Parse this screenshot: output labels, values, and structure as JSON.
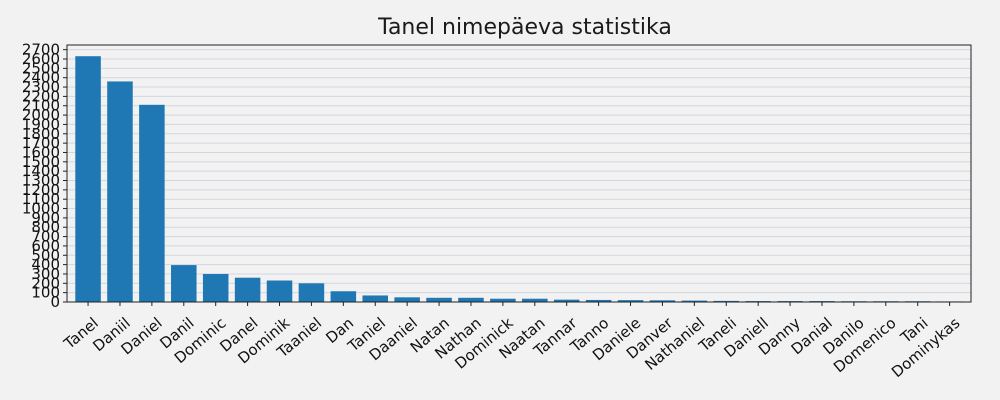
{
  "chart_data": {
    "type": "bar",
    "title": "Tanel nimepäeva statistika",
    "xlabel": "",
    "ylabel": "",
    "ylim": [
      0,
      2750
    ],
    "yticks": [
      0,
      100,
      200,
      300,
      400,
      500,
      600,
      700,
      800,
      900,
      1000,
      1100,
      1200,
      1300,
      1400,
      1500,
      1600,
      1700,
      1800,
      1900,
      2000,
      2100,
      2200,
      2300,
      2400,
      2500,
      2600,
      2700
    ],
    "grid": true,
    "categories": [
      "Tanel",
      "Daniil",
      "Daniel",
      "Danil",
      "Dominic",
      "Danel",
      "Dominik",
      "Taaniel",
      "Dan",
      "Taniel",
      "Daaniel",
      "Natan",
      "Nathan",
      "Dominick",
      "Naatan",
      "Tannar",
      "Tanno",
      "Daniele",
      "Danver",
      "Nathaniel",
      "Taneli",
      "Daniell",
      "Danny",
      "Danial",
      "Danilo",
      "Domenico",
      "Tani",
      "Dominykas"
    ],
    "values": [
      2630,
      2360,
      2110,
      395,
      300,
      260,
      230,
      200,
      115,
      70,
      50,
      45,
      45,
      35,
      35,
      25,
      22,
      20,
      18,
      15,
      12,
      10,
      10,
      10,
      8,
      8,
      8,
      6
    ],
    "colors": {
      "bar": "#1f77b4",
      "background": "#f2f2f2",
      "grid": "#d3d6e0",
      "axis": "#222222"
    }
  }
}
